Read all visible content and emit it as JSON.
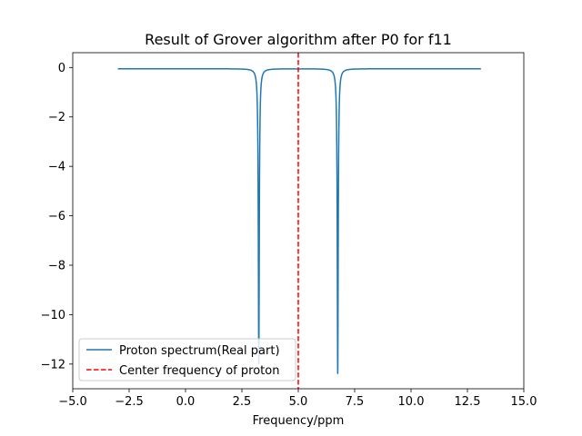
{
  "chart_data": {
    "type": "line",
    "title": "Result of Grover algorithm after P0 for f11",
    "xlabel": "Frequency/ppm",
    "ylabel": "",
    "xlim": [
      -5.0,
      15.0
    ],
    "ylim": [
      -13.0,
      0.6
    ],
    "xticks": [
      -5.0,
      -2.5,
      0.0,
      2.5,
      5.0,
      7.5,
      10.0,
      12.5,
      15.0
    ],
    "xtick_labels": [
      "−5.0",
      "−2.5",
      "0.0",
      "2.5",
      "5.0",
      "7.5",
      "10.0",
      "12.5",
      "15.0"
    ],
    "yticks": [
      0,
      -2,
      -4,
      -6,
      -8,
      -10,
      -12
    ],
    "ytick_labels": [
      "0",
      "−2",
      "−4",
      "−6",
      "−8",
      "−10",
      "−12"
    ],
    "grid": false,
    "legend_position": "lower-left",
    "series": [
      {
        "name": "Proton spectrum(Real part)",
        "kind": "line",
        "color": "#1f77b4",
        "x_range": [
          -3.0,
          13.1
        ],
        "baseline": -0.05,
        "peaks": [
          {
            "center": 3.25,
            "depth": -12.0,
            "width": 0.025
          },
          {
            "center": 6.75,
            "depth": -12.4,
            "width": 0.025
          }
        ]
      },
      {
        "name": "Center frequency of proton",
        "kind": "vline",
        "color": "#ff0000",
        "style": "dashed",
        "x": 5.0
      }
    ]
  }
}
